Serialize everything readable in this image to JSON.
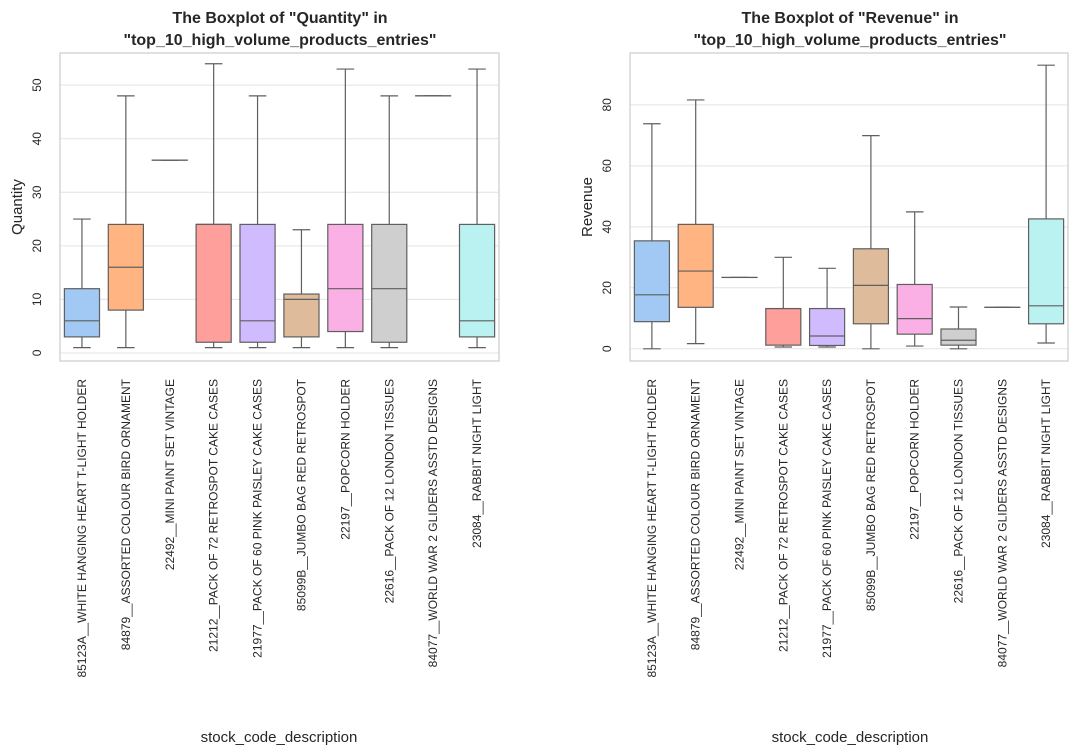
{
  "chart_data": [
    {
      "type": "box",
      "title_line1": "The Boxplot of \"Quantity\" in",
      "title_line2": "\"top_10_high_volume_products_entries\"",
      "xlabel": "stock_code_description",
      "ylabel": "Quantity",
      "ylim": [
        -1.5,
        56
      ],
      "yticks": [
        0,
        10,
        20,
        30,
        40,
        50
      ],
      "grid": true,
      "categories": [
        "85123A__WHITE HANGING HEART T-LIGHT HOLDER",
        "84879__ASSORTED COLOUR BIRD ORNAMENT",
        "22492__MINI PAINT SET VINTAGE",
        "21212__PACK OF 72 RETROSPOT CAKE CASES",
        "21977__PACK OF 60 PINK PAISLEY CAKE CASES",
        "85099B__JUMBO BAG RED RETROSPOT",
        "22197__POPCORN HOLDER",
        "22616__PACK OF 12 LONDON TISSUES",
        "84077__WORLD WAR 2 GLIDERS ASSTD DESIGNS",
        "23084__RABBIT NIGHT LIGHT"
      ],
      "boxes": [
        {
          "whislo": 1,
          "q1": 3,
          "med": 6,
          "q3": 12,
          "whishi": 25
        },
        {
          "whislo": 1,
          "q1": 8,
          "med": 16,
          "q3": 24,
          "whishi": 48
        },
        {
          "whislo": 36,
          "q1": 36,
          "med": 36,
          "q3": 36,
          "whishi": 36
        },
        {
          "whislo": 1,
          "q1": 2,
          "med": 24,
          "q3": 24,
          "whishi": 54
        },
        {
          "whislo": 1,
          "q1": 2,
          "med": 6,
          "q3": 24,
          "whishi": 48
        },
        {
          "whislo": 1,
          "q1": 3,
          "med": 10,
          "q3": 11,
          "whishi": 23
        },
        {
          "whislo": 1,
          "q1": 4,
          "med": 12,
          "q3": 24,
          "whishi": 53
        },
        {
          "whislo": 1,
          "q1": 2,
          "med": 12,
          "q3": 24,
          "whishi": 48
        },
        {
          "whislo": 48,
          "q1": 48,
          "med": 48,
          "q3": 48,
          "whishi": 48
        },
        {
          "whislo": 1,
          "q1": 3,
          "med": 6,
          "q3": 24,
          "whishi": 53
        }
      ]
    },
    {
      "type": "box",
      "title_line1": "The Boxplot of \"Revenue\" in",
      "title_line2": "\"top_10_high_volume_products_entries\"",
      "xlabel": "stock_code_description",
      "ylabel": "Revenue",
      "ylim": [
        -4,
        97
      ],
      "yticks": [
        0,
        20,
        40,
        60,
        80
      ],
      "grid": true,
      "categories": [
        "85123A__WHITE HANGING HEART T-LIGHT HOLDER",
        "84879__ASSORTED COLOUR BIRD ORNAMENT",
        "22492__MINI PAINT SET VINTAGE",
        "21212__PACK OF 72 RETROSPOT CAKE CASES",
        "21977__PACK OF 60 PINK PAISLEY CAKE CASES",
        "85099B__JUMBO BAG RED RETROSPOT",
        "22197__POPCORN HOLDER",
        "22616__PACK OF 12 LONDON TISSUES",
        "84077__WORLD WAR 2 GLIDERS ASSTD DESIGNS",
        "23084__RABBIT NIGHT LIGHT"
      ],
      "boxes": [
        {
          "whislo": 0,
          "q1": 8.9,
          "med": 17.7,
          "q3": 35.4,
          "whishi": 73.8
        },
        {
          "whislo": 1.7,
          "q1": 13.6,
          "med": 25.5,
          "q3": 40.8,
          "whishi": 81.6
        },
        {
          "whislo": 23.4,
          "q1": 23.4,
          "med": 23.4,
          "q3": 23.4,
          "whishi": 23.4
        },
        {
          "whislo": 0.6,
          "q1": 1.2,
          "med": 13.2,
          "q3": 13.2,
          "whishi": 30.0
        },
        {
          "whislo": 0.6,
          "q1": 1.1,
          "med": 4.2,
          "q3": 13.2,
          "whishi": 26.4
        },
        {
          "whislo": 0,
          "q1": 8.2,
          "med": 20.8,
          "q3": 32.8,
          "whishi": 69.9
        },
        {
          "whislo": 0.9,
          "q1": 4.8,
          "med": 9.9,
          "q3": 21.1,
          "whishi": 44.9
        },
        {
          "whislo": 0,
          "q1": 1.2,
          "med": 2.8,
          "q3": 6.5,
          "whishi": 13.7
        },
        {
          "whislo": 13.6,
          "q1": 13.6,
          "med": 13.6,
          "q3": 13.6,
          "whishi": 13.6
        },
        {
          "whislo": 1.9,
          "q1": 8.2,
          "med": 14.1,
          "q3": 42.6,
          "whishi": 93.0
        }
      ]
    }
  ],
  "colors": {
    "boxes": [
      "#a1c9f4",
      "#ffb482",
      "#8de5a1",
      "#ff9f9b",
      "#d0bbff",
      "#debb9b",
      "#fab0e4",
      "#cfcfcf",
      "#fffea3",
      "#b9f2f0"
    ],
    "line": "#5f5f5f",
    "grid": "#e3e3e3",
    "spine": "#cccccc",
    "text": "#262626"
  }
}
